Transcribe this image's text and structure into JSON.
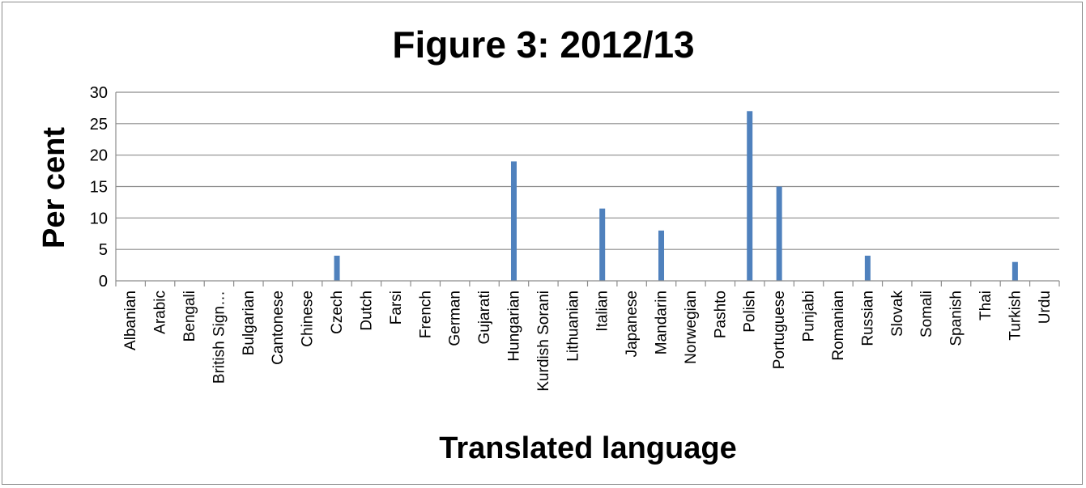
{
  "chart_data": {
    "type": "bar",
    "title": "Figure 3: 2012/13",
    "xlabel": "Translated language",
    "ylabel": "Per cent",
    "ylim": [
      0,
      30
    ],
    "yticks": [
      0,
      5,
      10,
      15,
      20,
      25,
      30
    ],
    "grid": true,
    "legend": "none",
    "bar_color": "#4f81bd",
    "categories": [
      "Albanian",
      "Arabic",
      "Bengali",
      "British Sign…",
      "Bulgarian",
      "Cantonese",
      "Chinese",
      "Czech",
      "Dutch",
      "Farsi",
      "French",
      "German",
      "Gujarati",
      "Hungarian",
      "Kurdish Sorani",
      "Lithuanian",
      "Italian",
      "Japanese",
      "Mandarin",
      "Norwegian",
      "Pashto",
      "Polish",
      "Portuguese",
      "Punjabi",
      "Romanian",
      "Russian",
      "Slovak",
      "Somali",
      "Spanish",
      "Thai",
      "Turkish",
      "Urdu"
    ],
    "values": [
      0,
      0,
      0,
      0,
      0,
      0,
      0,
      4,
      0,
      0,
      0,
      0,
      0,
      19,
      0,
      0,
      11.5,
      0,
      8,
      0,
      0,
      27,
      15,
      0,
      0,
      4,
      0,
      0,
      0,
      0,
      3,
      0
    ]
  }
}
